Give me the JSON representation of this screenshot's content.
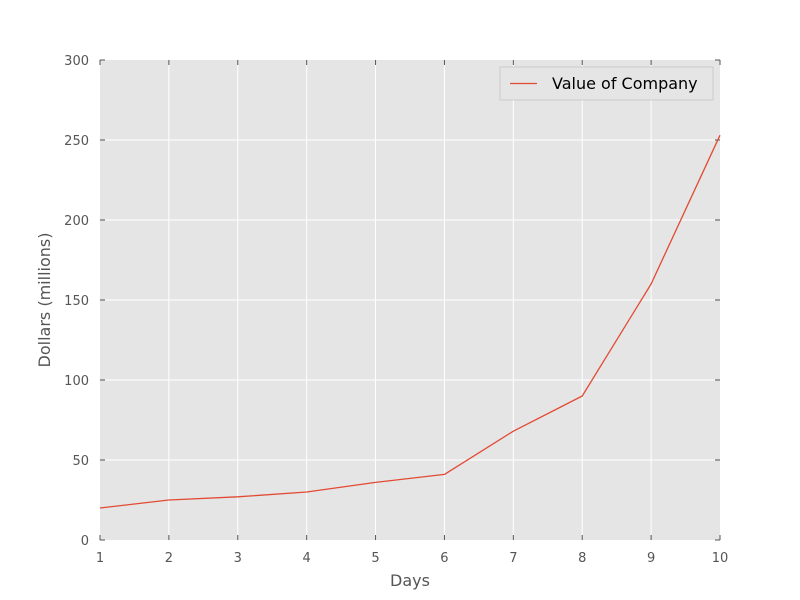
{
  "chart_data": {
    "type": "line",
    "title": "",
    "xlabel": "Days",
    "ylabel": "Dollars (millions)",
    "xlim": [
      1,
      10
    ],
    "ylim": [
      0,
      300
    ],
    "x_ticks": [
      1,
      2,
      3,
      4,
      5,
      6,
      7,
      8,
      9,
      10
    ],
    "y_ticks": [
      0,
      50,
      100,
      150,
      200,
      250,
      300
    ],
    "grid": true,
    "legend_position": "top-right",
    "colors": {
      "plot_background": "#e5e5e5",
      "grid": "#ffffff",
      "series": "#e24a33"
    },
    "series": [
      {
        "name": "Value of Company",
        "x": [
          1,
          2,
          3,
          4,
          5,
          6,
          7,
          8,
          9,
          10
        ],
        "values": [
          20,
          25,
          27,
          30,
          36,
          41,
          68,
          90,
          160,
          253
        ]
      }
    ]
  }
}
